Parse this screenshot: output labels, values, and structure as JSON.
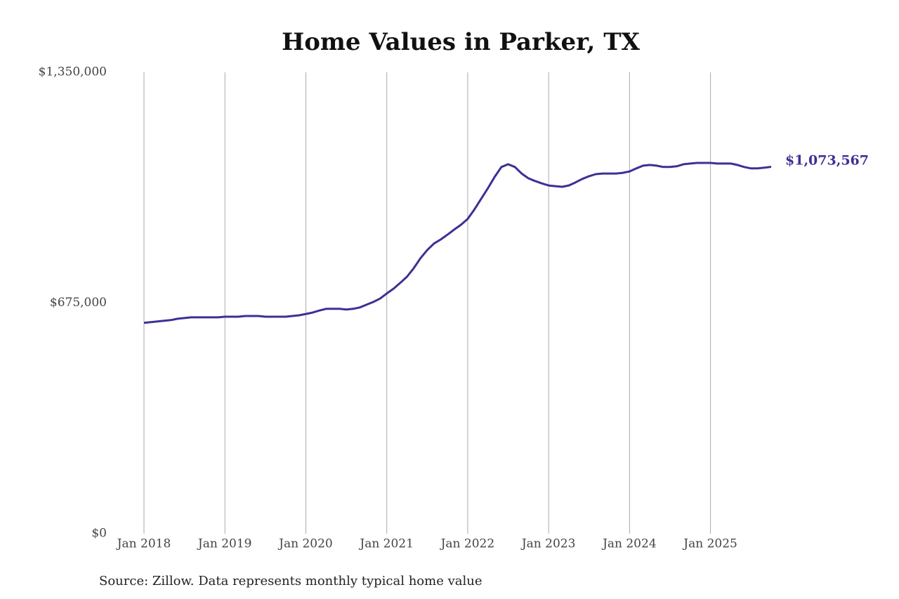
{
  "chart_data": {
    "type": "line",
    "title": "Home Values in Parker, TX",
    "source": "Source: Zillow. Data represents monthly typical home value",
    "x": [
      "2018-01",
      "2018-02",
      "2018-03",
      "2018-04",
      "2018-05",
      "2018-06",
      "2018-07",
      "2018-08",
      "2018-09",
      "2018-10",
      "2018-11",
      "2018-12",
      "2019-01",
      "2019-02",
      "2019-03",
      "2019-04",
      "2019-05",
      "2019-06",
      "2019-07",
      "2019-08",
      "2019-09",
      "2019-10",
      "2019-11",
      "2019-12",
      "2020-01",
      "2020-02",
      "2020-03",
      "2020-04",
      "2020-05",
      "2020-06",
      "2020-07",
      "2020-08",
      "2020-09",
      "2020-10",
      "2020-11",
      "2020-12",
      "2021-01",
      "2021-02",
      "2021-03",
      "2021-04",
      "2021-05",
      "2021-06",
      "2021-07",
      "2021-08",
      "2021-09",
      "2021-10",
      "2021-11",
      "2021-12",
      "2022-01",
      "2022-02",
      "2022-03",
      "2022-04",
      "2022-05",
      "2022-06",
      "2022-07",
      "2022-08",
      "2022-09",
      "2022-10",
      "2022-11",
      "2022-12",
      "2023-01",
      "2023-02",
      "2023-03",
      "2023-04",
      "2023-05",
      "2023-06",
      "2023-07",
      "2023-08",
      "2023-09",
      "2023-10",
      "2023-11",
      "2023-12",
      "2024-01",
      "2024-02",
      "2024-03",
      "2024-04",
      "2024-05",
      "2024-06",
      "2024-07",
      "2024-08",
      "2024-09",
      "2024-10",
      "2024-11",
      "2024-12",
      "2025-01",
      "2025-02",
      "2025-03",
      "2025-04",
      "2025-05",
      "2025-06",
      "2025-07",
      "2025-08",
      "2025-09",
      "2025-10"
    ],
    "series": [
      {
        "color": "#3b3195",
        "values": [
          617000,
          619000,
          621000,
          623000,
          625000,
          629000,
          631000,
          633000,
          633000,
          633000,
          633000,
          633000,
          635000,
          635000,
          635000,
          637000,
          637000,
          637000,
          635000,
          635000,
          635000,
          635000,
          637000,
          639000,
          643000,
          647000,
          653000,
          658000,
          658000,
          658000,
          656000,
          658000,
          662000,
          670000,
          678000,
          688000,
          703000,
          717000,
          734000,
          752000,
          777000,
          806000,
          830000,
          849000,
          861000,
          875000,
          890000,
          904000,
          921000,
          949000,
          980000,
          1011000,
          1044000,
          1073000,
          1081000,
          1073000,
          1054000,
          1040000,
          1032000,
          1025000,
          1019000,
          1017000,
          1015000,
          1019000,
          1028000,
          1038000,
          1046000,
          1052000,
          1054000,
          1054000,
          1054000,
          1056000,
          1060000,
          1069000,
          1077000,
          1079000,
          1077000,
          1073000,
          1073000,
          1075000,
          1081000,
          1083000,
          1085000,
          1085000,
          1085000,
          1083000,
          1083000,
          1083000,
          1079000,
          1073000,
          1069000,
          1069000,
          1071000,
          1073567
        ],
        "value_labels": [
          null,
          null,
          null,
          null,
          null,
          null,
          null,
          null,
          null,
          null,
          null,
          null,
          null,
          null,
          null,
          null,
          null,
          null,
          null,
          null,
          null,
          null,
          null,
          null,
          null,
          null,
          null,
          null,
          null,
          null,
          null,
          null,
          null,
          null,
          null,
          null,
          null,
          null,
          null,
          null,
          null,
          null,
          null,
          null,
          null,
          null,
          null,
          null,
          null,
          null,
          null,
          null,
          null,
          null,
          null,
          null,
          null,
          null,
          null,
          null,
          null,
          null,
          null,
          null,
          null,
          null,
          null,
          null,
          null,
          null,
          null,
          null,
          null,
          null,
          null,
          null,
          null,
          null,
          null,
          null,
          null,
          null,
          null,
          null,
          null,
          null,
          null,
          null,
          null,
          null,
          null,
          null,
          null,
          "$1,073,567"
        ]
      }
    ],
    "xlim": [
      "2018-01",
      "2025-10"
    ],
    "xticks": [
      {
        "value": "2018-01",
        "label": "Jan 2018"
      },
      {
        "value": "2019-01",
        "label": "Jan 2019"
      },
      {
        "value": "2020-01",
        "label": "Jan 2020"
      },
      {
        "value": "2021-01",
        "label": "Jan 2021"
      },
      {
        "value": "2022-01",
        "label": "Jan 2022"
      },
      {
        "value": "2023-01",
        "label": "Jan 2023"
      },
      {
        "value": "2024-01",
        "label": "Jan 2024"
      },
      {
        "value": "2025-01",
        "label": "Jan 2025"
      }
    ],
    "ylim": [
      0,
      1350000
    ],
    "yticks": [
      {
        "value": 0,
        "label": "$0"
      },
      {
        "value": 675000,
        "label": "$675,000"
      },
      {
        "value": 1350000,
        "label": "$1,350,000"
      }
    ],
    "grid": true
  }
}
